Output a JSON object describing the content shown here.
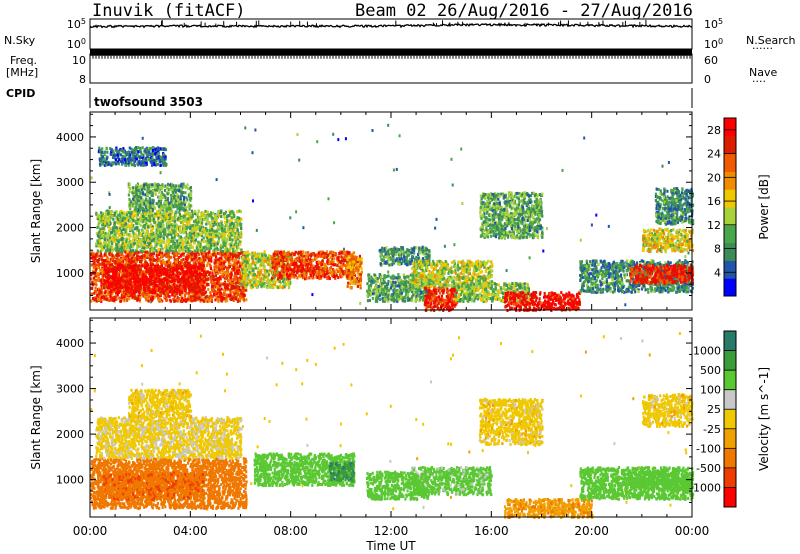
{
  "header": {
    "site": "Inuvik (fitACF)",
    "beam": "Beam 02",
    "dates": "26/Aug/2016 - 27/Aug/2016"
  },
  "side_labels": {
    "nsky": "N.Sky",
    "nsearch": "N.Search",
    "nsearch_marker": "......",
    "freq_line1": "Freq.",
    "freq_line2": "[MHz]",
    "nave": "Nave",
    "nave_marker": "....",
    "cpid": "CPID",
    "program": "twofsound 3503"
  },
  "colors": {
    "power_scale": [
      "#0000ff",
      "#2255aa",
      "#3c8c5a",
      "#4aa64a",
      "#a8d23c",
      "#f0c800",
      "#f08c00",
      "#f05a00",
      "#dc1e00",
      "#ff0000"
    ],
    "velocity_scale": [
      "#ff0000",
      "#f03c00",
      "#f07800",
      "#f0a000",
      "#f0c800",
      "#c8c8c8",
      "#5ac832",
      "#3c9c3c",
      "#2a7a6a",
      "#1e4ab4"
    ]
  },
  "chart_data": [
    {
      "type": "line",
      "panel": "noise",
      "x": [
        "00:00",
        "04:00",
        "08:00",
        "12:00",
        "16:00",
        "20:00",
        "00:00"
      ],
      "left_ticks": [
        "10^5",
        "10^0"
      ],
      "right_ticks": [
        "10^5",
        "10^0"
      ],
      "series": [
        {
          "name": "N.Sky",
          "values": [
            6000,
            7000,
            6500,
            7000,
            12000,
            9000,
            6000
          ]
        }
      ]
    },
    {
      "type": "line",
      "panel": "frequency",
      "left_ticks": [
        "10",
        "8"
      ],
      "right_ticks": [
        "60",
        "0"
      ],
      "series": [
        {
          "name": "Freq.",
          "values": [
            10.5,
            10.5,
            10.5,
            10.5,
            10.5,
            10.5,
            10.5
          ]
        }
      ]
    },
    {
      "type": "heatmap",
      "panel": "power",
      "xlabel": "Time UT",
      "ylabel": "Slant Range [km]",
      "xticks": [
        "00:00",
        "04:00",
        "08:00",
        "12:00",
        "16:00",
        "20:00",
        "00:00"
      ],
      "xlim": [
        0,
        24
      ],
      "yticks": [
        1000,
        2000,
        3000,
        4000
      ],
      "ylim": [
        180,
        4550
      ],
      "colorbar": {
        "label": "Power [dB]",
        "ticks": [
          "4",
          "8",
          "12",
          "16",
          "20",
          "24",
          "28"
        ],
        "range": [
          0,
          30
        ]
      },
      "regions": [
        {
          "t0": 0.0,
          "t1": 6.2,
          "r0": 400,
          "r1": 1500,
          "level": 24
        },
        {
          "t0": 0.5,
          "t1": 4.5,
          "r0": 600,
          "r1": 1200,
          "level": 28
        },
        {
          "t0": 0.2,
          "t1": 6.0,
          "r0": 1500,
          "r1": 2400,
          "level": 12
        },
        {
          "t0": 1.5,
          "t1": 4.0,
          "r0": 2400,
          "r1": 3000,
          "level": 10
        },
        {
          "t0": 0.3,
          "t1": 3.0,
          "r0": 3400,
          "r1": 3800,
          "level": 6
        },
        {
          "t0": 6.0,
          "t1": 8.0,
          "r0": 700,
          "r1": 1500,
          "level": 14
        },
        {
          "t0": 7.2,
          "t1": 10.5,
          "r0": 900,
          "r1": 1500,
          "level": 24
        },
        {
          "t0": 10.2,
          "t1": 10.8,
          "r0": 700,
          "r1": 1400,
          "level": 20
        },
        {
          "t0": 11.0,
          "t1": 13.5,
          "r0": 400,
          "r1": 1000,
          "level": 10
        },
        {
          "t0": 11.5,
          "t1": 13.5,
          "r0": 1200,
          "r1": 1600,
          "level": 8
        },
        {
          "t0": 12.8,
          "t1": 16.0,
          "r0": 700,
          "r1": 1300,
          "level": 14
        },
        {
          "t0": 13.3,
          "t1": 14.6,
          "r0": 200,
          "r1": 700,
          "level": 26
        },
        {
          "t0": 15.5,
          "t1": 18.0,
          "r0": 1800,
          "r1": 2800,
          "level": 10
        },
        {
          "t0": 14.5,
          "t1": 17.5,
          "r0": 400,
          "r1": 800,
          "level": 12
        },
        {
          "t0": 16.5,
          "t1": 19.5,
          "r0": 200,
          "r1": 600,
          "level": 28
        },
        {
          "t0": 19.5,
          "t1": 24.0,
          "r0": 600,
          "r1": 1300,
          "level": 8
        },
        {
          "t0": 21.5,
          "t1": 24.0,
          "r0": 800,
          "r1": 1200,
          "level": 26
        },
        {
          "t0": 22.0,
          "t1": 24.0,
          "r0": 1500,
          "r1": 2000,
          "level": 16
        },
        {
          "t0": 22.5,
          "t1": 24.0,
          "r0": 2100,
          "r1": 2900,
          "level": 8
        }
      ]
    },
    {
      "type": "heatmap",
      "panel": "velocity",
      "xlabel": "Time UT",
      "ylabel": "Slant Range [km]",
      "xticks": [
        "00:00",
        "04:00",
        "08:00",
        "12:00",
        "16:00",
        "20:00",
        "00:00"
      ],
      "xlim": [
        0,
        24
      ],
      "yticks": [
        1000,
        2000,
        3000,
        4000
      ],
      "ylim": [
        180,
        4550
      ],
      "colorbar": {
        "label": "Velocity [m s^-1]",
        "ticks": [
          "1000",
          "500",
          "100",
          "25",
          "-25",
          "-100",
          "-500",
          "-1000"
        ],
        "classes": [
          "< -1000",
          "-1000..-500",
          "-500..-100",
          "-100..-25",
          "-25..25",
          "25..100",
          "100..500",
          "500..1000",
          "> 1000"
        ]
      },
      "regions": [
        {
          "t0": 0.0,
          "t1": 6.2,
          "r0": 400,
          "r1": 1500,
          "level": -300
        },
        {
          "t0": 0.5,
          "t1": 4.5,
          "r0": 600,
          "r1": 1200,
          "level": -400
        },
        {
          "t0": 0.2,
          "t1": 6.0,
          "r0": 1500,
          "r1": 2400,
          "level": 10
        },
        {
          "t0": 1.5,
          "t1": 4.0,
          "r0": 2400,
          "r1": 3000,
          "level": 0
        },
        {
          "t0": 6.5,
          "t1": 10.5,
          "r0": 900,
          "r1": 1600,
          "level": 300
        },
        {
          "t0": 9.5,
          "t1": 10.5,
          "r0": 1000,
          "r1": 1400,
          "level": 800
        },
        {
          "t0": 11.0,
          "t1": 13.5,
          "r0": 600,
          "r1": 1200,
          "level": 200
        },
        {
          "t0": 12.8,
          "t1": 16.0,
          "r0": 700,
          "r1": 1300,
          "level": 150
        },
        {
          "t0": 15.5,
          "t1": 18.0,
          "r0": 1800,
          "r1": 2800,
          "level": 0
        },
        {
          "t0": 16.5,
          "t1": 20.0,
          "r0": 200,
          "r1": 600,
          "level": -80
        },
        {
          "t0": 19.5,
          "t1": 24.0,
          "r0": 600,
          "r1": 1300,
          "level": 300
        },
        {
          "t0": 21.5,
          "t1": 24.0,
          "r0": 800,
          "r1": 1200,
          "level": 200
        },
        {
          "t0": 22.0,
          "t1": 24.0,
          "r0": 2200,
          "r1": 2900,
          "level": 0
        }
      ]
    }
  ]
}
